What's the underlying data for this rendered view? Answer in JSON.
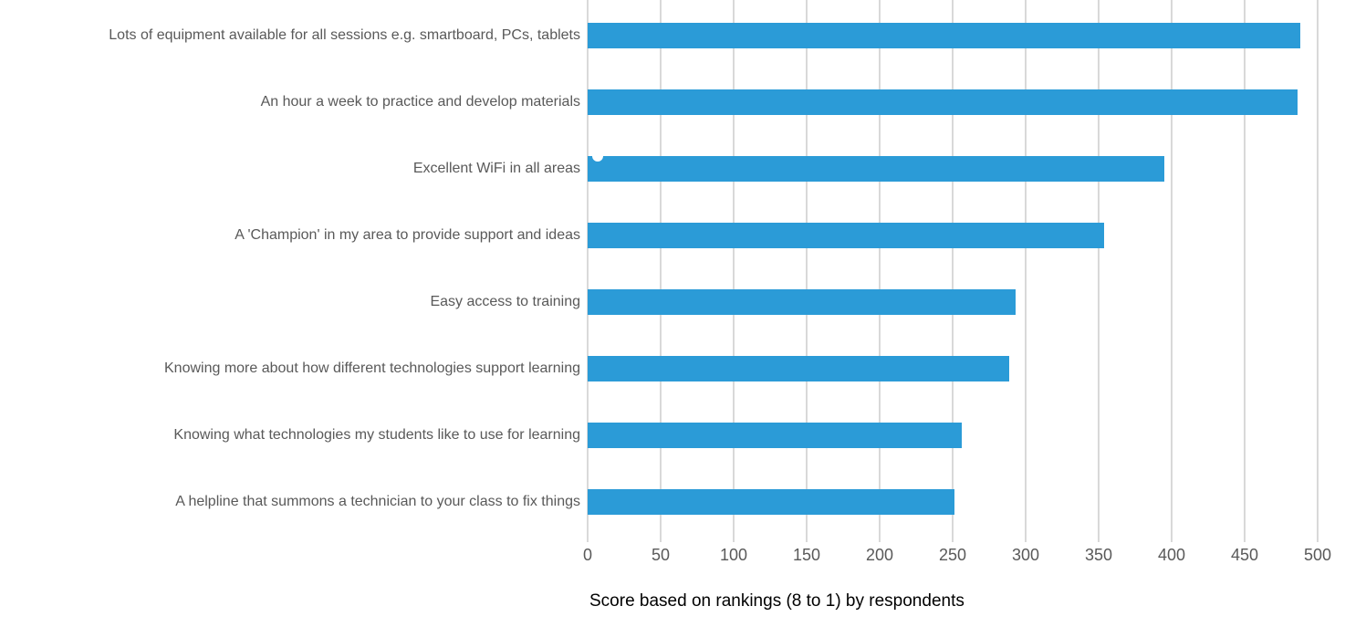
{
  "chart_data": {
    "type": "bar",
    "orientation": "horizontal",
    "title": "",
    "xlabel": "Score based on rankings (8 to 1) by respondents",
    "ylabel": "",
    "categories": [
      "Lots of equipment available for all sessions e.g. smartboard, PCs, tablets",
      "An hour a week to practice and develop materials",
      "Excellent WiFi in all areas",
      "A 'Champion' in my area to provide support and ideas",
      "Easy access to training",
      "Knowing more about how different technologies support learning",
      "Knowing what technologies my students like to use for learning",
      "A helpline that summons a technician to your class to fix things"
    ],
    "values": [
      488,
      486,
      395,
      354,
      293,
      289,
      256,
      251
    ],
    "xlim": [
      0,
      500
    ],
    "xticks": [
      0,
      50,
      100,
      150,
      200,
      250,
      300,
      350,
      400,
      450,
      500
    ],
    "grid": "vertical-only",
    "legend": "none",
    "colors": {
      "bar": "#2B9BD7",
      "gridline": "#D9D9D9",
      "tick_mark": "#D9D9D9",
      "text": "#595959"
    }
  }
}
